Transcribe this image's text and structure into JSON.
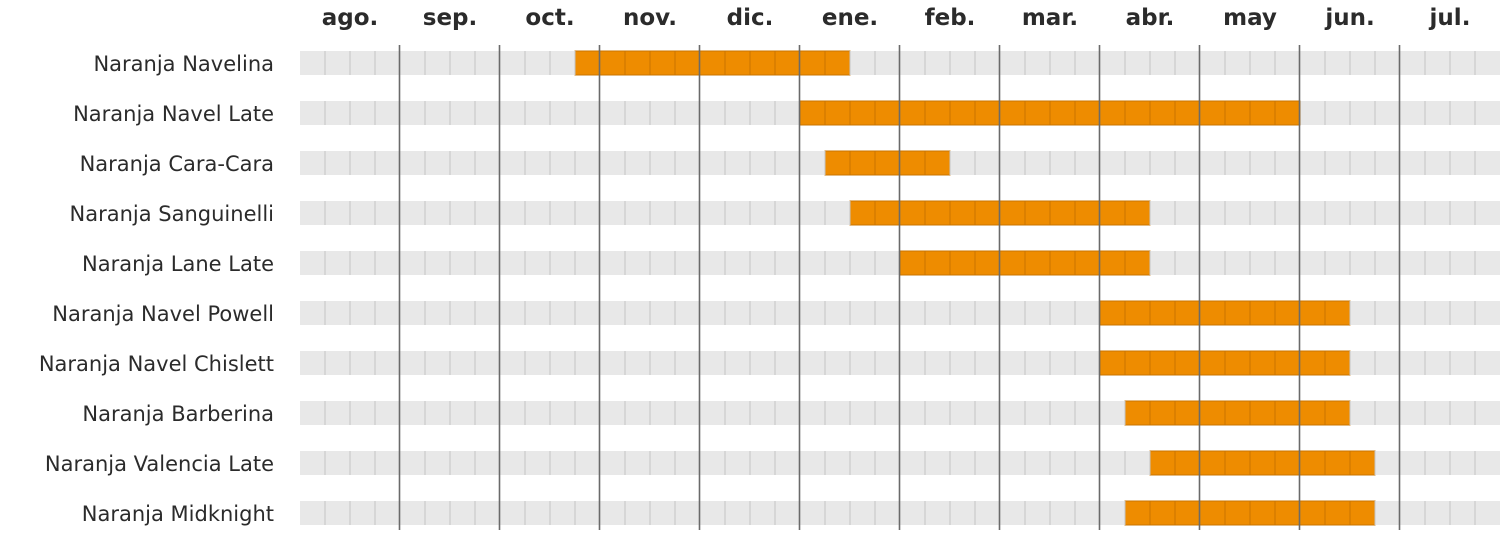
{
  "chart_data": {
    "type": "gantt",
    "title": "",
    "periods": [
      "ago.",
      "sep.",
      "oct.",
      "nov.",
      "dic.",
      "ene.",
      "feb.",
      "mar.",
      "abr.",
      "may",
      "jun.",
      "jul."
    ],
    "subdivisions_per_period": 4,
    "grid": true,
    "rows": [
      {
        "label": "Naranja Navelina",
        "start": 2.75,
        "end": 5.5
      },
      {
        "label": "Naranja Navel Late",
        "start": 5.0,
        "end": 10.0
      },
      {
        "label": "Naranja Cara-Cara",
        "start": 5.25,
        "end": 6.5
      },
      {
        "label": "Naranja Sanguinelli",
        "start": 5.5,
        "end": 8.5
      },
      {
        "label": "Naranja Lane Late",
        "start": 6.0,
        "end": 8.5
      },
      {
        "label": "Naranja Navel Powell",
        "start": 8.0,
        "end": 10.5
      },
      {
        "label": "Naranja Navel Chislett",
        "start": 8.0,
        "end": 10.5
      },
      {
        "label": "Naranja Barberina",
        "start": 8.25,
        "end": 10.5
      },
      {
        "label": "Naranja Valencia Late",
        "start": 8.5,
        "end": 10.75
      },
      {
        "label": "Naranja Midknight",
        "start": 8.25,
        "end": 10.75
      }
    ],
    "colors": {
      "active": "#ee8c00",
      "active_edge": "#c97400",
      "track": "#e8e8e8",
      "tick_minor": "#c4c4c4",
      "month_line": "#6a6a6a",
      "text": "#2b2b2b"
    }
  }
}
